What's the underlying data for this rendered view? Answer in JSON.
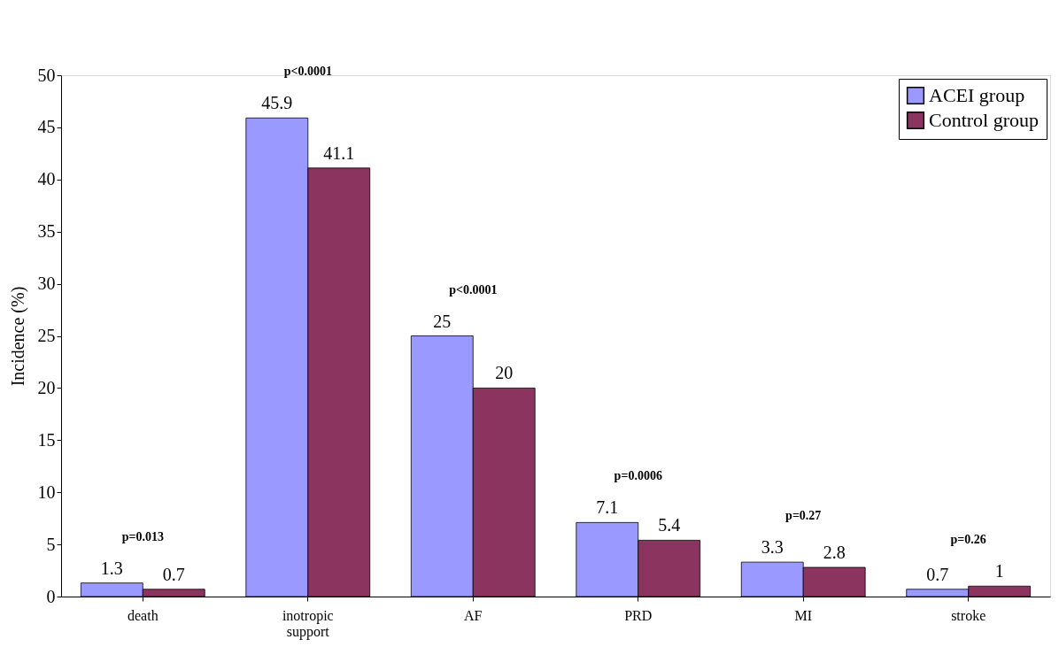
{
  "chart_data": {
    "type": "bar",
    "categories": [
      "death",
      "inotropic support",
      "AF",
      "PRD",
      "MI",
      "stroke"
    ],
    "series": [
      {
        "name": "ACEI group",
        "color": "#9999ff",
        "values": [
          1.3,
          45.9,
          25,
          7.1,
          3.3,
          0.7
        ]
      },
      {
        "name": "Control group",
        "color": "#8b3460",
        "values": [
          0.7,
          41.1,
          20,
          5.4,
          2.8,
          1
        ]
      }
    ],
    "ylabel": "Incidence (%)",
    "ylim": [
      0,
      50
    ],
    "yticks": [
      0,
      5,
      10,
      15,
      20,
      25,
      30,
      35,
      40,
      45,
      50
    ],
    "data_labels": true,
    "grid": false,
    "legend": "top right",
    "annotations": [
      "p=0.013",
      "p<0.0001",
      "p<0.0001",
      "p=0.0006",
      "p=0.27",
      "p=0.26"
    ]
  }
}
